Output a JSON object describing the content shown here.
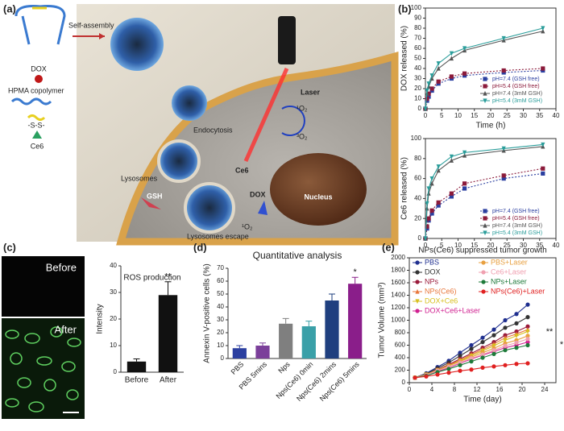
{
  "diagram": {
    "panel_label": "(a)",
    "labels": {
      "self_assembly": "Self-assembly",
      "dox": "DOX",
      "hpma": "HPMA copolymer",
      "ss": "-S-S-",
      "ce6_legend": "Ce6",
      "endocytosis": "Endocytosis",
      "lysosomes": "Lysosomes",
      "gsh": "GSH",
      "lysosomes_escape": "Lysosomes escape",
      "ce6": "Ce6",
      "dox_release": "DOX",
      "laser": "Laser",
      "singlet1": "¹O₂",
      "triplet": "³O₂",
      "singlet2": "¹O₂",
      "nucleus": "Nucleus"
    }
  },
  "images": {
    "before": "Before",
    "after": "After"
  },
  "chart_data": [
    {
      "type": "line",
      "panel_label": "(b)",
      "xlabel": "Time (h)",
      "ylabel": "DOX released (%)",
      "x": [
        0,
        0.5,
        1,
        2,
        4,
        8,
        12,
        24,
        36
      ],
      "xlim": [
        0,
        40
      ],
      "xticks": [
        0,
        5,
        10,
        15,
        20,
        25,
        30,
        35,
        40
      ],
      "ylim": [
        0,
        100
      ],
      "yticks": [
        0,
        10,
        20,
        30,
        40,
        50,
        60,
        70,
        80,
        90,
        100
      ],
      "legend": "lower right",
      "series": [
        {
          "name": "pH=7.4 (GSH free)",
          "color": "#2b3fa0",
          "marker": "square",
          "line_style": "dotted",
          "values": [
            0,
            8,
            12,
            18,
            25,
            30,
            33,
            36,
            38
          ]
        },
        {
          "name": "pH=5.4 (GSH free)",
          "color": "#8b1a3a",
          "marker": "square",
          "line_style": "dotted",
          "values": [
            0,
            10,
            15,
            20,
            27,
            32,
            35,
            38,
            40
          ]
        },
        {
          "name": "pH=7.4 (3mM GSH)",
          "color": "#555555",
          "marker": "triangle",
          "line_style": "solid",
          "values": [
            0,
            15,
            22,
            30,
            40,
            50,
            58,
            68,
            77
          ]
        },
        {
          "name": "pH=5.4 (3mM GSH)",
          "color": "#2a9d9a",
          "marker": "triangle-down",
          "line_style": "solid",
          "values": [
            0,
            18,
            25,
            33,
            45,
            55,
            60,
            70,
            80
          ]
        }
      ]
    },
    {
      "type": "line",
      "ylabel": "Ce6 released (%)",
      "x": [
        0,
        0.5,
        1,
        2,
        4,
        8,
        12,
        24,
        36
      ],
      "xlim": [
        0,
        40
      ],
      "xticks": [
        0,
        5,
        10,
        15,
        20,
        25,
        30,
        35,
        40
      ],
      "ylim": [
        0,
        100
      ],
      "yticks": [
        0,
        20,
        40,
        60,
        80,
        100
      ],
      "legend": "lower right",
      "series": [
        {
          "name": "pH=7.4 (GSH free)",
          "color": "#2b3fa0",
          "marker": "square",
          "line_style": "dotted",
          "values": [
            0,
            10,
            18,
            25,
            33,
            42,
            50,
            60,
            65
          ]
        },
        {
          "name": "pH=5.4 (GSH free)",
          "color": "#8b1a3a",
          "marker": "square",
          "line_style": "dotted",
          "values": [
            0,
            12,
            20,
            28,
            36,
            45,
            55,
            63,
            70
          ]
        },
        {
          "name": "pH=7.4 (3mM GSH)",
          "color": "#555555",
          "marker": "triangle",
          "line_style": "solid",
          "values": [
            0,
            30,
            45,
            55,
            68,
            78,
            83,
            88,
            92
          ]
        },
        {
          "name": "pH=5.4 (3mM GSH)",
          "color": "#2a9d9a",
          "marker": "triangle-down",
          "line_style": "solid",
          "values": [
            0,
            35,
            50,
            60,
            72,
            82,
            86,
            90,
            94
          ]
        }
      ]
    },
    {
      "type": "bar",
      "panel_label": "(c)",
      "title": "ROS production",
      "ylabel": "Intensity",
      "categories": [
        "Before",
        "After"
      ],
      "values": [
        4,
        29
      ],
      "errors": [
        1,
        5
      ],
      "colors": [
        "#111111",
        "#111111"
      ],
      "ylim": [
        0,
        40
      ],
      "yticks": [
        0,
        10,
        20,
        30,
        40
      ],
      "annotations": [
        "**"
      ]
    },
    {
      "type": "bar",
      "panel_label": "(d)",
      "title": "Quantitative analysis",
      "ylabel": "Annexin V-positive cells (%)",
      "categories": [
        "PBS",
        "PBS 5mins",
        "Nps",
        "Nps(Ce6) 0min",
        "Nps(Ce6) 2mins",
        "Nps(Ce6) 5mins"
      ],
      "values": [
        8,
        10,
        27,
        25,
        45,
        58
      ],
      "errors": [
        2,
        2,
        4,
        4,
        5,
        5
      ],
      "colors": [
        "#2b3fa0",
        "#7b3f9a",
        "#7f7f7f",
        "#3aa0a8",
        "#1f3f7f",
        "#8a1e8a"
      ],
      "ylim": [
        0,
        70
      ],
      "yticks": [
        0,
        10,
        20,
        30,
        40,
        50,
        60,
        70
      ],
      "annotations": [
        "*"
      ]
    },
    {
      "type": "line",
      "panel_label": "(e)",
      "title": "NPs(Ce6) suppressed tumor growth",
      "xlabel": "Time (day)",
      "ylabel": "Tumor Volume (mm³)",
      "x": [
        1,
        3,
        5,
        7,
        9,
        11,
        13,
        15,
        17,
        19,
        21
      ],
      "xlim": [
        0,
        26
      ],
      "xticks": [
        0,
        4,
        8,
        12,
        16,
        20,
        24
      ],
      "ylim": [
        0,
        2000
      ],
      "yticks": [
        0,
        200,
        400,
        600,
        800,
        1000,
        1200,
        1400,
        1600,
        1800,
        2000
      ],
      "legend": "upper left",
      "annotations": [
        "*",
        "**"
      ],
      "series": [
        {
          "name": "PBS",
          "color": "#1f2f8f",
          "marker": "circle",
          "line_style": "solid",
          "values": [
            80,
            150,
            250,
            350,
            480,
            600,
            720,
            850,
            1000,
            1100,
            1250
          ]
        },
        {
          "name": "DOX",
          "color": "#333333",
          "marker": "circle",
          "line_style": "solid",
          "values": [
            80,
            140,
            230,
            320,
            430,
            540,
            650,
            760,
            880,
            950,
            1050
          ]
        },
        {
          "name": "NPs",
          "color": "#9a1a3a",
          "marker": "circle",
          "line_style": "solid",
          "values": [
            80,
            130,
            210,
            290,
            380,
            470,
            560,
            650,
            760,
            820,
            900
          ]
        },
        {
          "name": "NPs(Ce6)",
          "color": "#e8763a",
          "marker": "triangle",
          "line_style": "solid",
          "values": [
            80,
            130,
            200,
            280,
            360,
            450,
            530,
            620,
            720,
            780,
            850
          ]
        },
        {
          "name": "DOX+Ce6",
          "color": "#d8c020",
          "marker": "triangle-down",
          "line_style": "solid",
          "values": [
            80,
            130,
            200,
            270,
            350,
            430,
            510,
            590,
            680,
            750,
            820
          ]
        },
        {
          "name": "DOX+Ce6+Laser",
          "color": "#d02090",
          "marker": "circle",
          "line_style": "solid",
          "values": [
            80,
            120,
            180,
            240,
            310,
            380,
            440,
            500,
            560,
            600,
            650
          ]
        },
        {
          "name": "PBS+Laser",
          "color": "#e8a040",
          "marker": "circle",
          "line_style": "solid",
          "values": [
            80,
            130,
            200,
            270,
            340,
            410,
            480,
            550,
            630,
            680,
            750
          ]
        },
        {
          "name": "Ce6+Laser",
          "color": "#f0a0b0",
          "marker": "circle",
          "line_style": "solid",
          "values": [
            80,
            120,
            190,
            250,
            320,
            390,
            450,
            520,
            590,
            640,
            700
          ]
        },
        {
          "name": "NPs+Laser",
          "color": "#1e7a3a",
          "marker": "circle",
          "line_style": "solid",
          "values": [
            80,
            110,
            170,
            220,
            280,
            340,
            400,
            460,
            520,
            560,
            600
          ]
        },
        {
          "name": "NPs(Ce6)+Laser",
          "color": "#e02020",
          "marker": "circle",
          "line_style": "solid",
          "values": [
            80,
            100,
            130,
            160,
            190,
            210,
            240,
            260,
            280,
            300,
            310
          ]
        }
      ]
    }
  ]
}
